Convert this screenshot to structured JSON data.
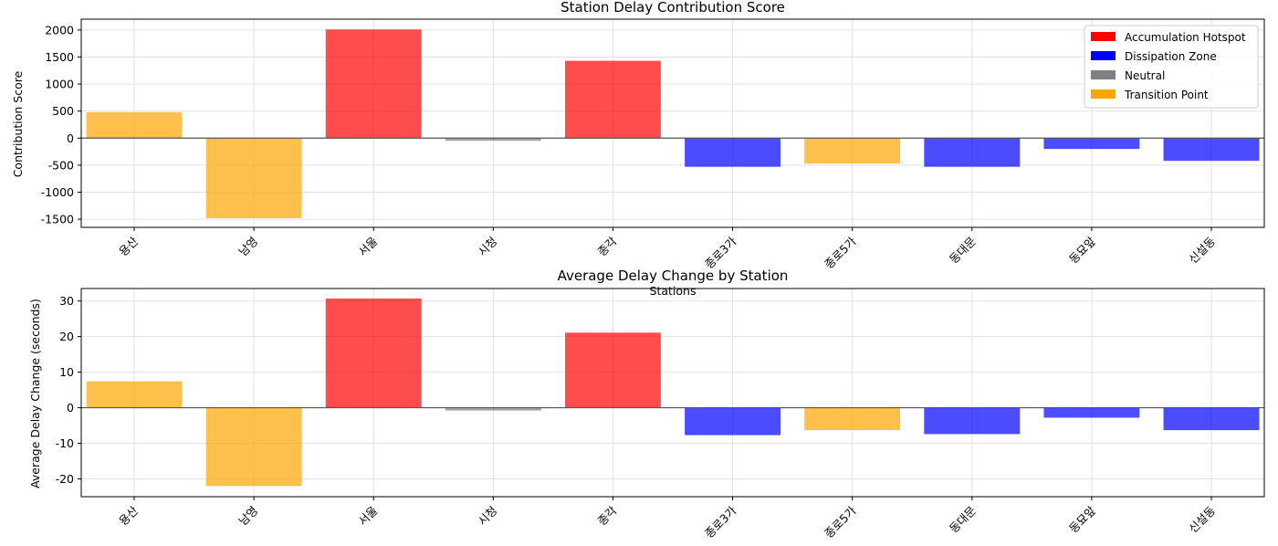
{
  "chart_data": [
    {
      "type": "bar",
      "title": "Station Delay Contribution Score",
      "xlabel": "Stations",
      "ylabel": "Contribution Score",
      "ylim": [
        -1650,
        2200
      ],
      "yticks": [
        -1500,
        -1000,
        -500,
        0,
        500,
        1000,
        1500,
        2000
      ],
      "grid": true,
      "legend_position": "top-right",
      "categories": [
        "용산",
        "남영",
        "서울",
        "시청",
        "종각",
        "종로3가",
        "종로5가",
        "동대문",
        "동묘앞",
        "신설동"
      ],
      "values": [
        480,
        -1480,
        2010,
        -50,
        1430,
        -530,
        -470,
        -530,
        -200,
        -420
      ],
      "classes": [
        "Transition Point",
        "Transition Point",
        "Accumulation Hotspot",
        "Neutral",
        "Accumulation Hotspot",
        "Dissipation Zone",
        "Transition Point",
        "Dissipation Zone",
        "Dissipation Zone",
        "Dissipation Zone"
      ]
    },
    {
      "type": "bar",
      "title": "Average Delay Change by Station",
      "xlabel": "",
      "ylabel": "Average Delay Change (seconds)",
      "ylim": [
        -25,
        33.5
      ],
      "yticks": [
        -20,
        -10,
        0,
        10,
        20,
        30
      ],
      "grid": true,
      "categories": [
        "용산",
        "남영",
        "서울",
        "시청",
        "종각",
        "종로3가",
        "종로5가",
        "동대문",
        "동묘앞",
        "신설동"
      ],
      "values": [
        7.4,
        -22,
        30.7,
        -0.8,
        21.1,
        -7.7,
        -6.3,
        -7.4,
        -2.8,
        -6.3
      ],
      "classes": [
        "Transition Point",
        "Transition Point",
        "Accumulation Hotspot",
        "Neutral",
        "Accumulation Hotspot",
        "Dissipation Zone",
        "Transition Point",
        "Dissipation Zone",
        "Dissipation Zone",
        "Dissipation Zone"
      ]
    }
  ],
  "legend": [
    {
      "label": "Accumulation Hotspot",
      "color": "#ff0000"
    },
    {
      "label": "Dissipation Zone",
      "color": "#0000ff"
    },
    {
      "label": "Neutral",
      "color": "#808080"
    },
    {
      "label": "Transition Point",
      "color": "#ffa500"
    }
  ],
  "bar_opacity": 0.7
}
